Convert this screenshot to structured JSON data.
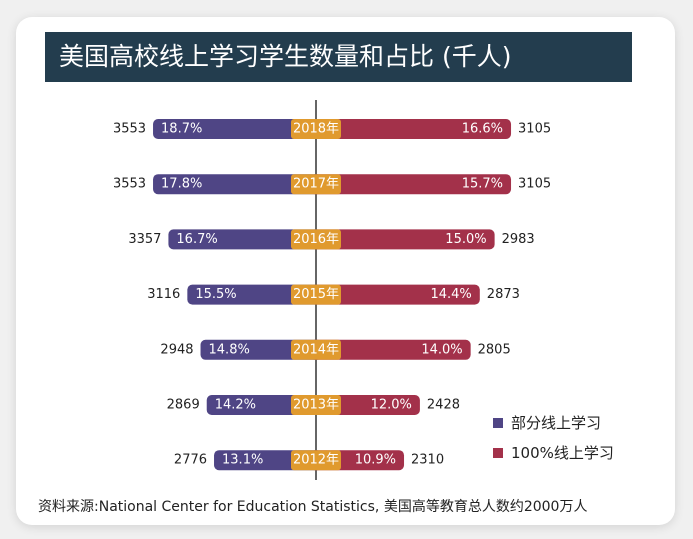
{
  "chart_data": {
    "type": "bar",
    "title": "美国高校线上学习学生数量和占比 (千人)",
    "categories": [
      "2018年",
      "2017年",
      "2016年",
      "2015年",
      "2014年",
      "2013年",
      "2012年"
    ],
    "series": [
      {
        "name": "部分线上学习",
        "color": "#4f4585",
        "values": [
          3553,
          3553,
          3357,
          3116,
          2948,
          2869,
          2776
        ],
        "percent_labels": [
          "18.7%",
          "17.8%",
          "16.7%",
          "15.5%",
          "14.8%",
          "14.2%",
          "13.1%"
        ]
      },
      {
        "name": "100%线上学习",
        "color": "#a3314a",
        "values": [
          3105,
          3105,
          2983,
          2873,
          2805,
          2428,
          2310
        ],
        "percent_labels": [
          "16.6%",
          "15.7%",
          "15.0%",
          "14.4%",
          "14.0%",
          "12.0%",
          "10.9%"
        ]
      }
    ],
    "year_label_color": "#e09a2e",
    "legend_position": "bottom-right",
    "source": "资料来源:National Center for Education Statistics, 美国高等教育总人数约2000万人"
  }
}
